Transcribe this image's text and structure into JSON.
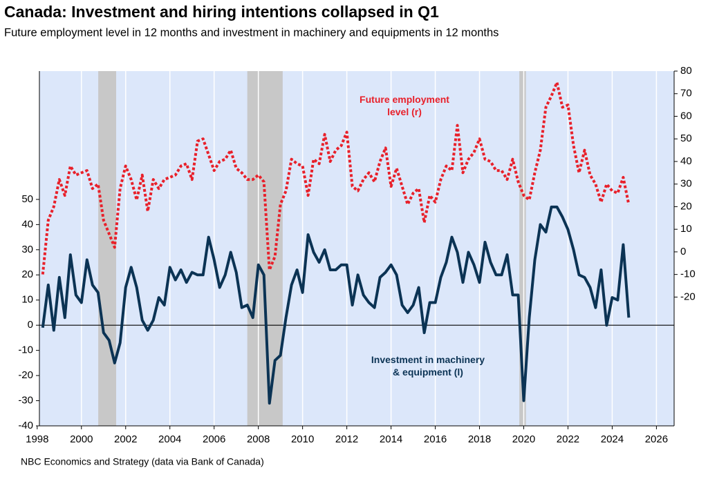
{
  "chart_data": {
    "type": "line",
    "title": "Canada: Investment and hiring intentions collapsed in Q1",
    "subtitle": "Future employment level in 12 months and investment in machinery and equipments in 12 months",
    "source": "NBC Economics and Strategy (data via Bank of Canada)",
    "y2_unit": "%",
    "annotations": [
      {
        "lines": [
          "Future employment",
          "level (r)"
        ],
        "color": "#e8202a"
      },
      {
        "lines": [
          "Investment in machinery",
          "& equipment (l)"
        ],
        "color": "#0b3354"
      }
    ],
    "shaded_periods": [
      [
        2000.76,
        2001.57
      ],
      [
        2007.5,
        2009.1
      ],
      [
        2019.8,
        2020.1
      ]
    ],
    "shade_color": "#c8c8c8",
    "background": "#dce7fa",
    "zero_line": true,
    "grid": true,
    "xlim": [
      1998.1,
      2026.8
    ],
    "xticks": [
      1998,
      2000,
      2002,
      2004,
      2006,
      2008,
      2010,
      2012,
      2014,
      2016,
      2018,
      2020,
      2022,
      2024,
      2026
    ],
    "ylim": [
      -40,
      101
    ],
    "yticks": [
      -40,
      -30,
      -20,
      -10,
      0,
      10,
      20,
      30,
      40,
      50
    ],
    "y2lim": [
      -77,
      80
    ],
    "y2ticks": [
      -20,
      -10,
      0,
      10,
      20,
      30,
      40,
      50,
      60,
      70,
      80
    ],
    "x": [
      1998.25,
      1998.5,
      1998.75,
      1999,
      1999.25,
      1999.5,
      1999.75,
      2000,
      2000.25,
      2000.5,
      2000.75,
      2001,
      2001.25,
      2001.5,
      2001.75,
      2002,
      2002.25,
      2002.5,
      2002.75,
      2003,
      2003.25,
      2003.5,
      2003.75,
      2004,
      2004.25,
      2004.5,
      2004.75,
      2005,
      2005.25,
      2005.5,
      2005.75,
      2006,
      2006.25,
      2006.5,
      2006.75,
      2007,
      2007.25,
      2007.5,
      2007.75,
      2008,
      2008.25,
      2008.5,
      2008.75,
      2009,
      2009.25,
      2009.5,
      2009.75,
      2010,
      2010.25,
      2010.5,
      2010.75,
      2011,
      2011.25,
      2011.5,
      2011.75,
      2012,
      2012.25,
      2012.5,
      2012.75,
      2013,
      2013.25,
      2013.5,
      2013.75,
      2014,
      2014.25,
      2014.5,
      2014.75,
      2015,
      2015.25,
      2015.5,
      2015.75,
      2016,
      2016.25,
      2016.5,
      2016.75,
      2017,
      2017.25,
      2017.5,
      2017.75,
      2018,
      2018.25,
      2018.5,
      2018.75,
      2019,
      2019.25,
      2019.5,
      2019.75,
      2020,
      2020.25,
      2020.5,
      2020.75,
      2021,
      2021.25,
      2021.5,
      2021.75,
      2022,
      2022.25,
      2022.5,
      2022.75,
      2023,
      2023.25,
      2023.5,
      2023.75,
      2024,
      2024.25,
      2024.5,
      2024.75
    ],
    "series": [
      {
        "name": "Investment in machinery & equipment",
        "color": "#0b3354",
        "axis": "y",
        "dash": false,
        "values": [
          -1,
          16,
          -2,
          19,
          3,
          28,
          12,
          9,
          26,
          16,
          13,
          -3,
          -6,
          -15,
          -7,
          15,
          23,
          15,
          2,
          -2,
          2,
          11,
          8,
          23,
          18,
          22,
          17,
          21,
          20,
          20,
          35,
          26,
          15,
          20,
          29,
          21,
          7,
          8,
          3,
          24,
          20,
          -31,
          -14,
          -12,
          3,
          16,
          22,
          13,
          36,
          29,
          25,
          30,
          22,
          22,
          24,
          24,
          8,
          20,
          12,
          9,
          7,
          19,
          21,
          24,
          20,
          8,
          5,
          8,
          15,
          -3,
          9,
          9,
          19,
          25,
          35,
          29,
          17,
          29,
          24,
          17,
          33,
          25,
          20,
          20,
          28,
          12,
          12,
          -30,
          3,
          26,
          40,
          37,
          47,
          47,
          43,
          38,
          30,
          20,
          19,
          15,
          7,
          22,
          0,
          11,
          10,
          32,
          3
        ]
      },
      {
        "name": "Future employment level",
        "color": "#e8202a",
        "axis": "y2",
        "dash": true,
        "values": [
          -10,
          14,
          20,
          32,
          25,
          38,
          34,
          35,
          36,
          28,
          30,
          14,
          8,
          2,
          28,
          38,
          32,
          23,
          34,
          18,
          32,
          28,
          32,
          33,
          34,
          38,
          39,
          32,
          49,
          50,
          43,
          36,
          40,
          41,
          45,
          37,
          35,
          32,
          32,
          34,
          31,
          -8,
          -2,
          21,
          27,
          41,
          39,
          38,
          25,
          41,
          39,
          52,
          40,
          45,
          47,
          53,
          29,
          27,
          32,
          35,
          31,
          40,
          46,
          29,
          37,
          29,
          21,
          26,
          28,
          13,
          25,
          22,
          32,
          38,
          36,
          56,
          35,
          41,
          44,
          50,
          41,
          40,
          36,
          36,
          32,
          41,
          31,
          25,
          23,
          35,
          45,
          64,
          69,
          75,
          64,
          65,
          47,
          35,
          45,
          34,
          30,
          22,
          30,
          27,
          26,
          33,
          21
        ]
      }
    ]
  }
}
